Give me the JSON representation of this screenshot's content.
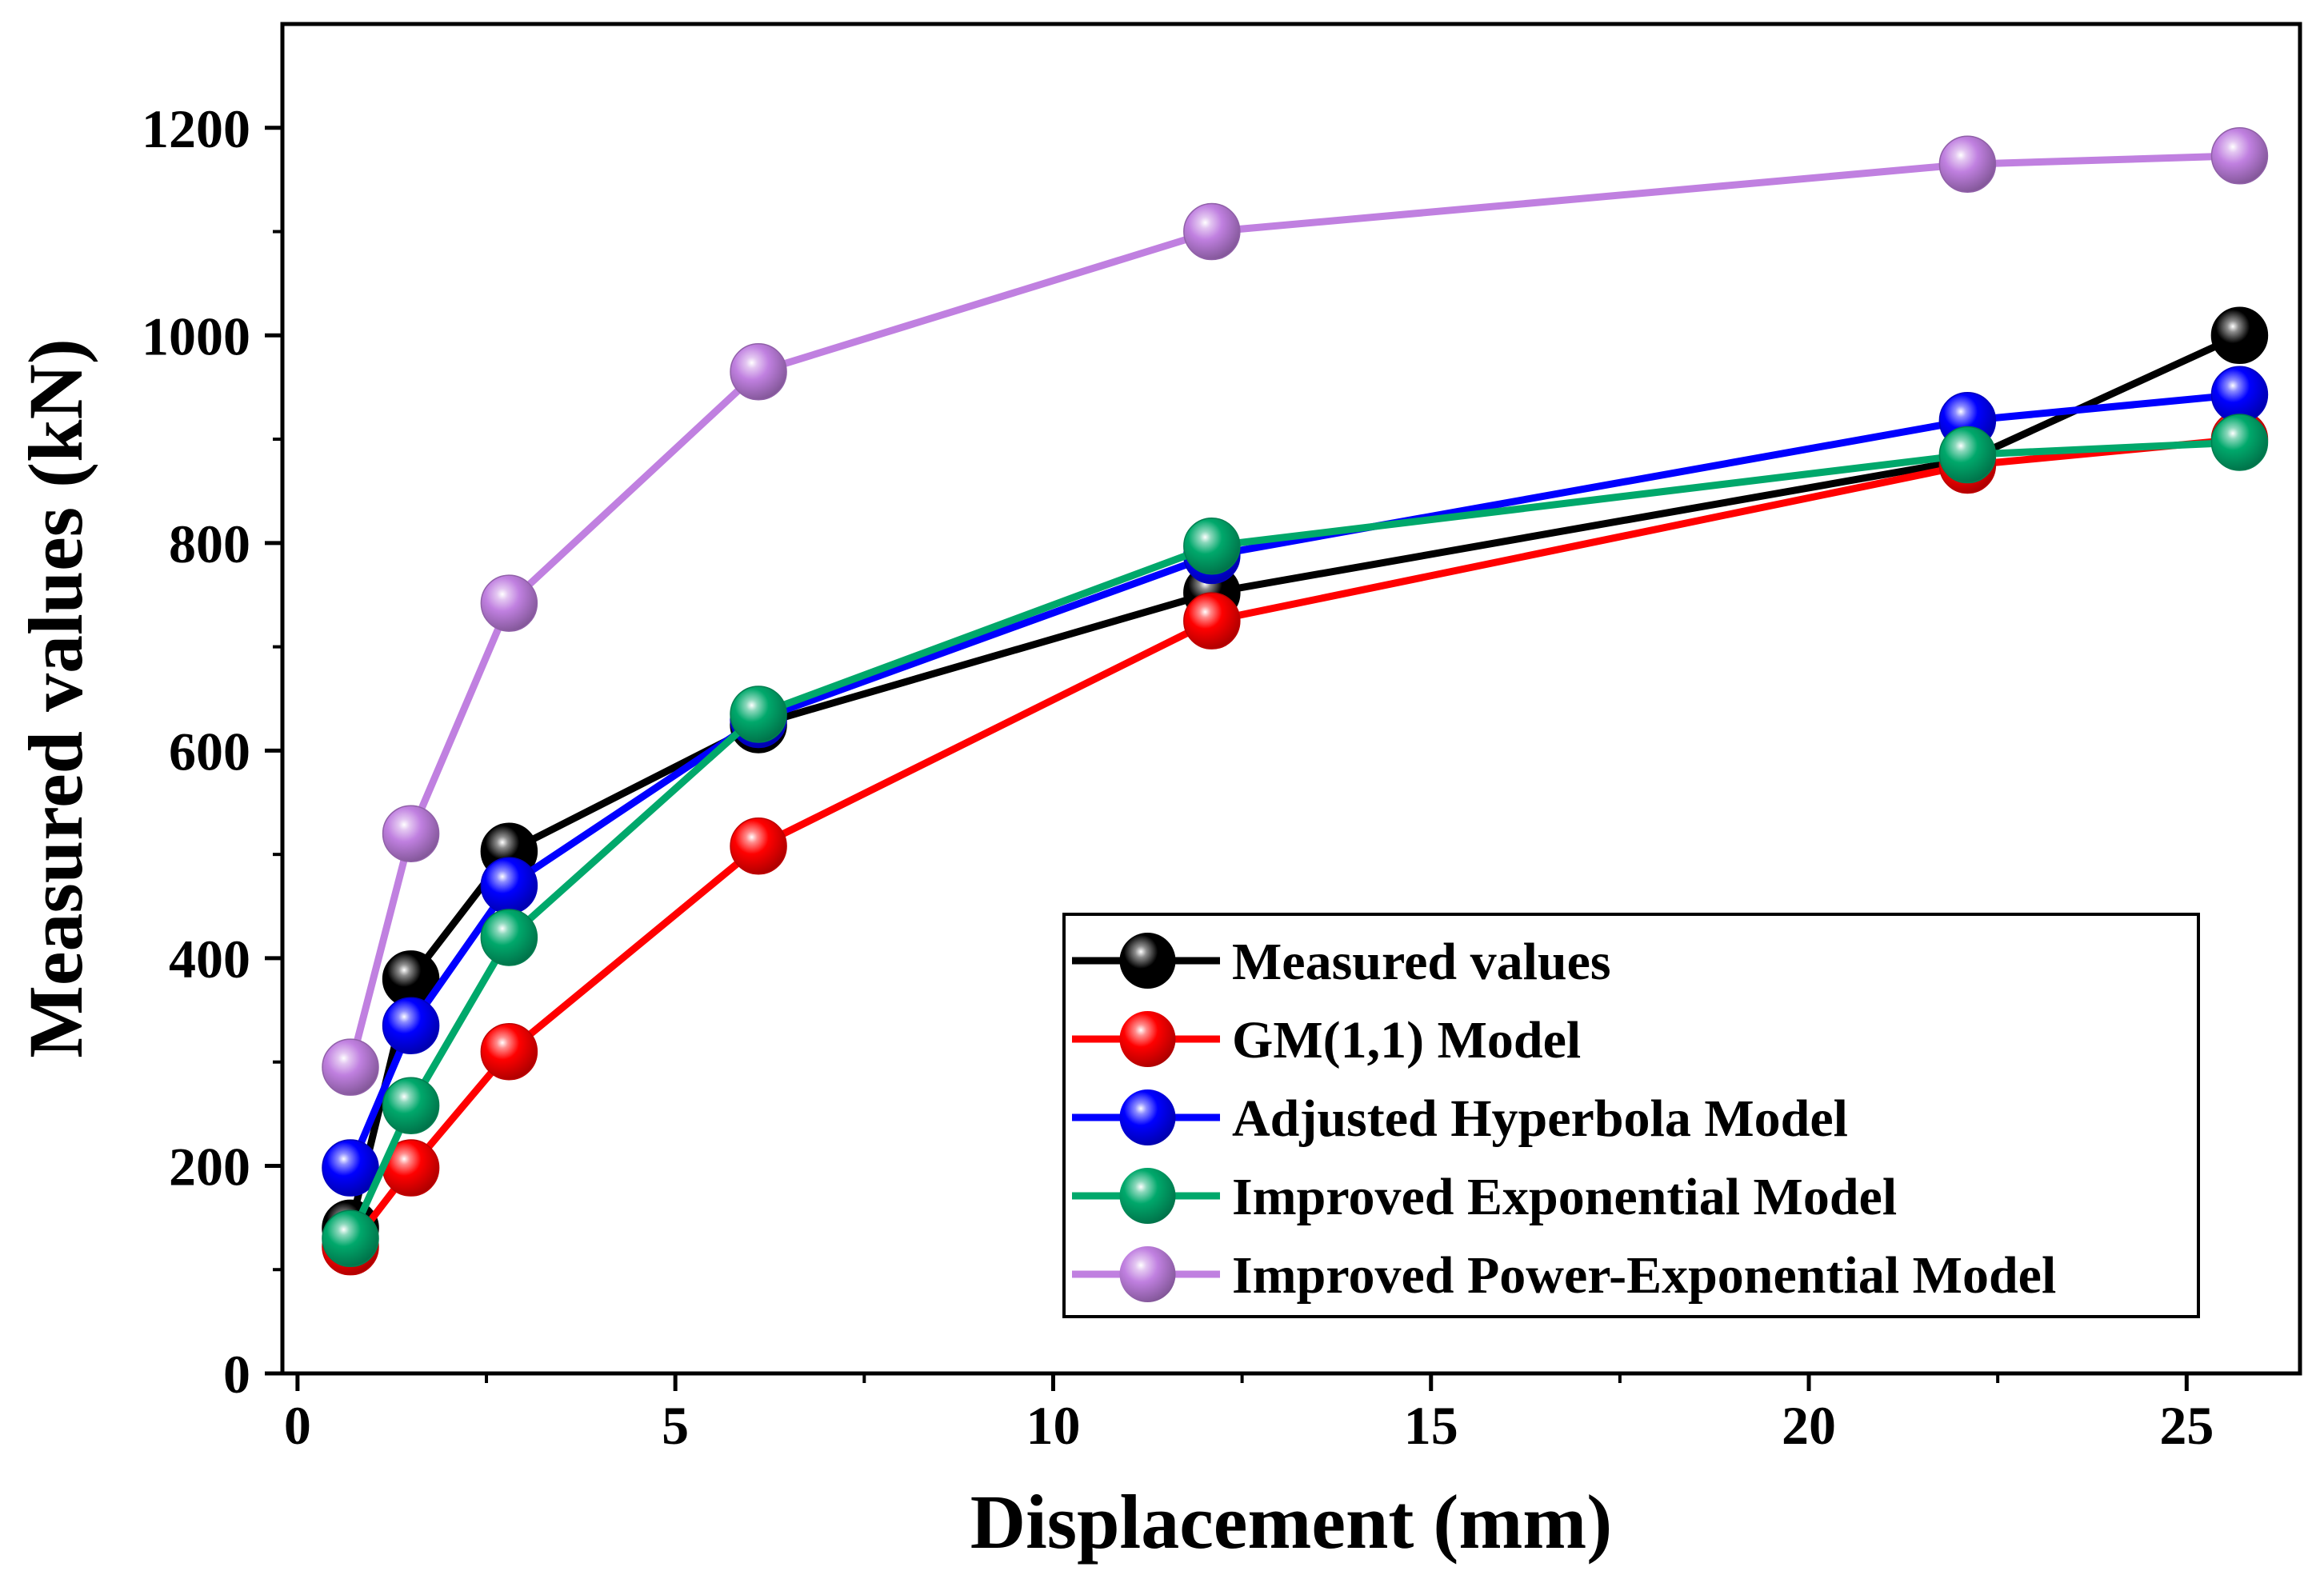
{
  "chart_data": {
    "type": "line",
    "title": "",
    "xlabel": "Displacement (mm)",
    "ylabel": "Measured values (kN)",
    "xlim": [
      -0.2,
      26.5
    ],
    "ylim": [
      0,
      1300
    ],
    "xticks": [
      0,
      5,
      10,
      15,
      20,
      25
    ],
    "xtick_labels": [
      "0",
      "5",
      "10",
      "15",
      "20",
      "25"
    ],
    "yticks": [
      0,
      200,
      400,
      600,
      800,
      1000,
      1200
    ],
    "ytick_labels": [
      "0",
      "200",
      "400",
      "600",
      "800",
      "1000",
      "1200"
    ],
    "grid": false,
    "legend_position": "bottom-right",
    "x": [
      0.7,
      1.5,
      2.8,
      6.1,
      12.1,
      22.1,
      25.7
    ],
    "series": [
      {
        "name": "Measured values",
        "color": "#000000",
        "values": [
          140,
          380,
          503,
          625,
          752,
          880,
          1000
        ]
      },
      {
        "name": "GM(1,1) Model",
        "color": "#ff0000",
        "values": [
          122,
          198,
          310,
          508,
          725,
          875,
          900
        ]
      },
      {
        "name": "Adjusted Hyperbola Model",
        "color": "#0000ff",
        "values": [
          198,
          335,
          470,
          630,
          788,
          918,
          943
        ]
      },
      {
        "name": "Improved Exponential Model",
        "color": "#00a86b",
        "values": [
          130,
          258,
          420,
          635,
          797,
          885,
          897
        ]
      },
      {
        "name": "Improved Power-Exponential Model",
        "color": "#c080e0",
        "values": [
          295,
          520,
          742,
          965,
          1100,
          1165,
          1173
        ]
      }
    ]
  }
}
